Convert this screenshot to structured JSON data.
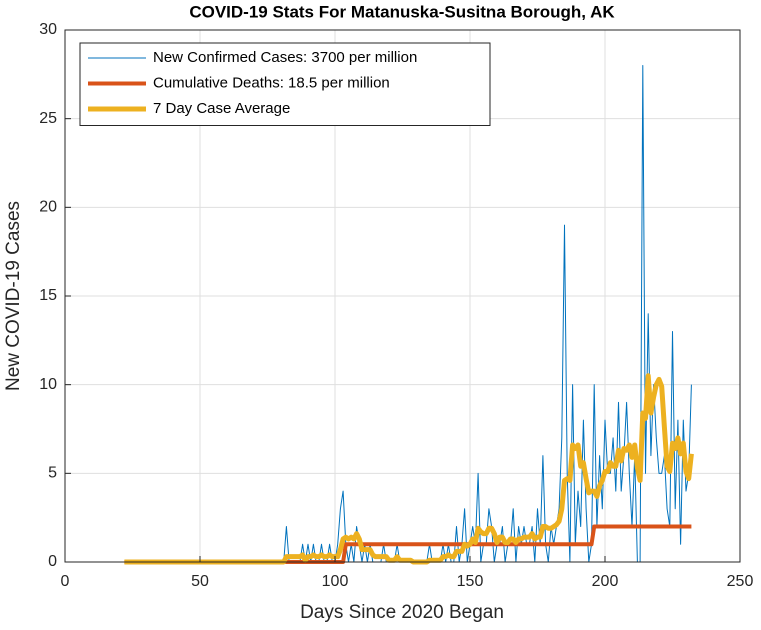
{
  "chart_data": {
    "type": "line",
    "title": "COVID-19 Stats For Matanuska-Susitna Borough, AK",
    "xlabel": "Days Since 2020 Began",
    "ylabel": "New COVID-19 Cases",
    "xlim": [
      0,
      250
    ],
    "xticks": [
      0,
      50,
      100,
      150,
      200,
      250
    ],
    "ylim": [
      0,
      30
    ],
    "yticks": [
      0,
      5,
      10,
      15,
      20,
      25,
      30
    ],
    "grid": true,
    "legend": "northwest",
    "x": [
      22,
      23,
      24,
      25,
      26,
      27,
      28,
      29,
      30,
      31,
      32,
      33,
      34,
      35,
      36,
      37,
      38,
      39,
      40,
      41,
      42,
      43,
      44,
      45,
      46,
      47,
      48,
      49,
      50,
      51,
      52,
      53,
      54,
      55,
      56,
      57,
      58,
      59,
      60,
      61,
      62,
      63,
      64,
      65,
      66,
      67,
      68,
      69,
      70,
      71,
      72,
      73,
      74,
      75,
      76,
      77,
      78,
      79,
      80,
      81,
      82,
      83,
      84,
      85,
      86,
      87,
      88,
      89,
      90,
      91,
      92,
      93,
      94,
      95,
      96,
      97,
      98,
      99,
      100,
      101,
      102,
      103,
      104,
      105,
      106,
      107,
      108,
      109,
      110,
      111,
      112,
      113,
      114,
      115,
      116,
      117,
      118,
      119,
      120,
      121,
      122,
      123,
      124,
      125,
      126,
      127,
      128,
      129,
      130,
      131,
      132,
      133,
      134,
      135,
      136,
      137,
      138,
      139,
      140,
      141,
      142,
      143,
      144,
      145,
      146,
      147,
      148,
      149,
      150,
      151,
      152,
      153,
      154,
      155,
      156,
      157,
      158,
      159,
      160,
      161,
      162,
      163,
      164,
      165,
      166,
      167,
      168,
      169,
      170,
      171,
      172,
      173,
      174,
      175,
      176,
      177,
      178,
      179,
      180,
      181,
      182,
      183,
      184,
      185,
      186,
      187,
      188,
      189,
      190,
      191,
      192,
      193,
      194,
      195,
      196,
      197,
      198,
      199,
      200,
      201,
      202,
      203,
      204,
      205,
      206,
      207,
      208,
      209,
      210,
      211,
      212,
      213,
      214,
      215,
      216,
      217,
      218,
      219,
      220,
      221,
      222,
      223,
      224,
      225,
      226,
      227,
      228,
      229,
      230,
      231,
      232
    ],
    "series": [
      {
        "name": "New Confirmed Cases: 3700 per million",
        "color": "#0072bd",
        "width": 1,
        "values": [
          0,
          0,
          0,
          0,
          0,
          0,
          0,
          0,
          0,
          0,
          0,
          0,
          0,
          0,
          0,
          0,
          0,
          0,
          0,
          0,
          0,
          0,
          0,
          0,
          0,
          0,
          0,
          0,
          0,
          0,
          0,
          0,
          0,
          0,
          0,
          0,
          0,
          0,
          0,
          0,
          0,
          0,
          0,
          0,
          0,
          0,
          0,
          0,
          0,
          0,
          0,
          0,
          0,
          0,
          0,
          0,
          0,
          0,
          0,
          0,
          2,
          0,
          0,
          0,
          0,
          0,
          1,
          0,
          1,
          0,
          1,
          0,
          0,
          1,
          0,
          0,
          1,
          0,
          0,
          1,
          3,
          4,
          1,
          0,
          1,
          0,
          2,
          1,
          0,
          1,
          0,
          1,
          0,
          0,
          0,
          0,
          1,
          0,
          0,
          0,
          0,
          1,
          0,
          0,
          0,
          0,
          0,
          0,
          0,
          0,
          0,
          0,
          0,
          1,
          0,
          0,
          0,
          0,
          1,
          0,
          1,
          0,
          0,
          2,
          0,
          1,
          3,
          0,
          1,
          2,
          1,
          5,
          0,
          1,
          1,
          3,
          2,
          0,
          1,
          1,
          2,
          0,
          1,
          1,
          3,
          0,
          2,
          1,
          2,
          1,
          1,
          2,
          0,
          3,
          1,
          6,
          1,
          0,
          2,
          1,
          2,
          3,
          7,
          19,
          5,
          0,
          10,
          1,
          4,
          2,
          8,
          3,
          0,
          1,
          10,
          2,
          6,
          3,
          8,
          5,
          5,
          7,
          4,
          9,
          4,
          6,
          9,
          5,
          2,
          6,
          0,
          0,
          28,
          5,
          14,
          6,
          10,
          7,
          5,
          5,
          6,
          3,
          2,
          13,
          3,
          8,
          1,
          8,
          4,
          5,
          10
        ]
      },
      {
        "name": "Cumulative Deaths: 18.5 per million",
        "color": "#d95319",
        "width": 4,
        "values": [
          0,
          0,
          0,
          0,
          0,
          0,
          0,
          0,
          0,
          0,
          0,
          0,
          0,
          0,
          0,
          0,
          0,
          0,
          0,
          0,
          0,
          0,
          0,
          0,
          0,
          0,
          0,
          0,
          0,
          0,
          0,
          0,
          0,
          0,
          0,
          0,
          0,
          0,
          0,
          0,
          0,
          0,
          0,
          0,
          0,
          0,
          0,
          0,
          0,
          0,
          0,
          0,
          0,
          0,
          0,
          0,
          0,
          0,
          0,
          0,
          0,
          0,
          0,
          0,
          0,
          0,
          0,
          0,
          0,
          0,
          0,
          0,
          0,
          0,
          0,
          0,
          0,
          0,
          0,
          0,
          0,
          0,
          1,
          1,
          1,
          1,
          1,
          1,
          1,
          1,
          1,
          1,
          1,
          1,
          1,
          1,
          1,
          1,
          1,
          1,
          1,
          1,
          1,
          1,
          1,
          1,
          1,
          1,
          1,
          1,
          1,
          1,
          1,
          1,
          1,
          1,
          1,
          1,
          1,
          1,
          1,
          1,
          1,
          1,
          1,
          1,
          1,
          1,
          1,
          1,
          1,
          1,
          1,
          1,
          1,
          1,
          1,
          1,
          1,
          1,
          1,
          1,
          1,
          1,
          1,
          1,
          1,
          1,
          1,
          1,
          1,
          1,
          1,
          1,
          1,
          1,
          1,
          1,
          1,
          1,
          1,
          1,
          1,
          1,
          1,
          1,
          1,
          1,
          1,
          1,
          1,
          1,
          1,
          1,
          2,
          2,
          2,
          2,
          2,
          2,
          2,
          2,
          2,
          2,
          2,
          2,
          2,
          2,
          2,
          2,
          2,
          2,
          2,
          2,
          2,
          2,
          2,
          2,
          2,
          2,
          2,
          2,
          2,
          2,
          2,
          2,
          2,
          2,
          2,
          2,
          2
        ]
      },
      {
        "name": "7 Day Case Average",
        "color": "#edb120",
        "width": 5,
        "values": [
          0,
          0,
          0,
          0,
          0,
          0,
          0,
          0,
          0,
          0,
          0,
          0,
          0,
          0,
          0,
          0,
          0,
          0,
          0,
          0,
          0,
          0,
          0,
          0,
          0,
          0,
          0,
          0,
          0,
          0,
          0,
          0,
          0,
          0,
          0,
          0,
          0,
          0,
          0,
          0,
          0,
          0,
          0,
          0,
          0,
          0,
          0,
          0,
          0,
          0,
          0,
          0,
          0,
          0,
          0,
          0,
          0,
          0,
          0,
          0,
          0.3,
          0.3,
          0.3,
          0.3,
          0.3,
          0.3,
          0.4,
          0.1,
          0.3,
          0.3,
          0.4,
          0.3,
          0.3,
          0.4,
          0.3,
          0.3,
          0.4,
          0.3,
          0.3,
          0.3,
          0.7,
          1.3,
          1.4,
          1.3,
          1.4,
          1.3,
          1.6,
          1.3,
          0.7,
          0.7,
          0.7,
          0.7,
          0.4,
          0.3,
          0.3,
          0.3,
          0.3,
          0.3,
          0.1,
          0.1,
          0.1,
          0.3,
          0.1,
          0.1,
          0.1,
          0.1,
          0.1,
          0,
          0,
          0,
          0,
          0,
          0,
          0.1,
          0.1,
          0.1,
          0.1,
          0.1,
          0.3,
          0.3,
          0.4,
          0.3,
          0.3,
          0.6,
          0.6,
          0.6,
          1,
          0.9,
          1,
          1.3,
          1.1,
          1.9,
          1.7,
          1.6,
          1.6,
          1.9,
          1.9,
          1.6,
          1.1,
          1.4,
          1.4,
          1.1,
          1.1,
          1.3,
          1.3,
          1.1,
          1.3,
          1.3,
          1.4,
          1.4,
          1.4,
          1.6,
          1.3,
          1.4,
          1.4,
          2,
          2,
          1.9,
          1.9,
          2,
          2.1,
          2.3,
          3,
          4.6,
          4.7,
          4.6,
          6.6,
          6.4,
          6.6,
          5.4,
          5.6,
          4.7,
          3.9,
          4,
          4,
          3.7,
          4.3,
          4.6,
          5.1,
          5.1,
          5.6,
          5.4,
          5.4,
          6.3,
          5.7,
          6.4,
          6.3,
          6.6,
          5.9,
          6.6,
          5.3,
          4.6,
          8.4,
          8.1,
          10.5,
          8.4,
          9.3,
          10,
          10.3,
          9.9,
          7.6,
          5.4,
          5.1,
          6.7,
          6.4,
          7,
          6.1,
          6.7,
          5.1,
          4.7,
          6.1
        ]
      }
    ]
  }
}
